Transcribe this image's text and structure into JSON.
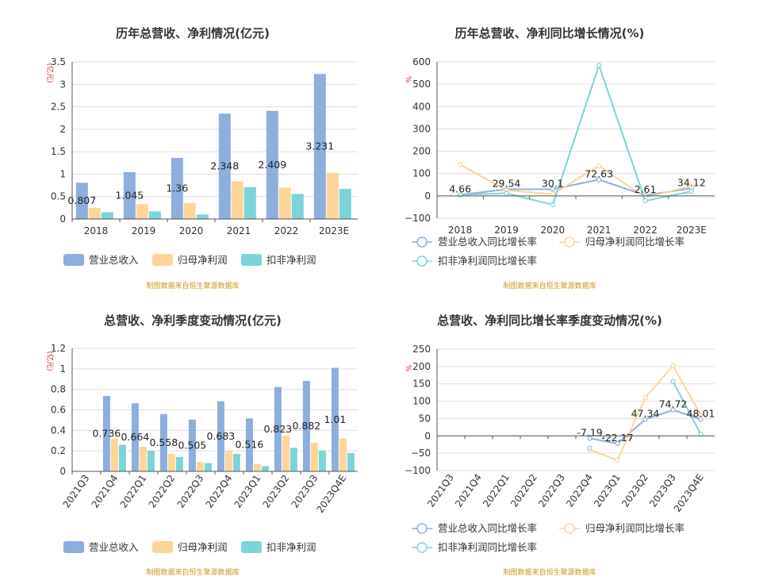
{
  "colors": {
    "revenue": "#8eaedc",
    "net_profit": "#fdd59a",
    "deducted_profit": "#7dd3d7",
    "grid": "#dddddd",
    "axis": "#555555",
    "unit_label": "#d62728",
    "source": "#c8961e"
  },
  "source_note": "制图数据来自恒生聚源数据库",
  "chart_data": [
    {
      "type": "bar",
      "title": "历年总营收、净利情况(亿元)",
      "ylabel": "(亿元)",
      "ylim": [
        0,
        3.5
      ],
      "yticks": [
        0,
        0.5,
        1,
        1.5,
        2,
        2.5,
        3,
        3.5
      ],
      "ytick_labels": [
        "0",
        "0.5",
        "1",
        "1.5",
        "2",
        "2.5",
        "3",
        "3.5"
      ],
      "categories": [
        "2018",
        "2019",
        "2020",
        "2021",
        "2022",
        "2023E"
      ],
      "series": [
        {
          "name": "营业总收入",
          "values": [
            0.807,
            1.045,
            1.36,
            2.348,
            2.409,
            3.231
          ]
        },
        {
          "name": "归母净利润",
          "values": [
            0.25,
            0.33,
            0.36,
            0.84,
            0.7,
            1.03
          ]
        },
        {
          "name": "扣非净利润",
          "values": [
            0.15,
            0.17,
            0.1,
            0.71,
            0.56,
            0.67
          ]
        }
      ],
      "data_labels": [
        "0.807",
        "1.045",
        "1.36",
        "2.348",
        "2.409",
        "3.231"
      ],
      "legend": "bottom",
      "grid": true
    },
    {
      "type": "line",
      "title": "历年总营收、净利同比增长情况(%)",
      "ylabel": "%",
      "ylim": [
        -100,
        600
      ],
      "yticks": [
        -100,
        0,
        100,
        200,
        300,
        400,
        500,
        600
      ],
      "ytick_labels": [
        "−100",
        "0",
        "100",
        "200",
        "300",
        "400",
        "500",
        "600"
      ],
      "categories": [
        "2018",
        "2019",
        "2020",
        "2021",
        "2022",
        "2023E"
      ],
      "series": [
        {
          "name": "营业总收入同比增长率",
          "values": [
            4.66,
            29.54,
            30.1,
            72.63,
            2.61,
            34.12
          ]
        },
        {
          "name": "归母净利润同比增长率",
          "values": [
            140,
            25,
            8,
            135,
            -8,
            45
          ]
        },
        {
          "name": "扣非净利润同比增长率",
          "values": [
            5,
            12,
            -40,
            585,
            -22,
            20
          ]
        }
      ],
      "data_labels": [
        "4.66",
        "29.54",
        "30.1",
        "72.63",
        "2.61",
        "34.12"
      ],
      "legend": "bottom",
      "grid": true
    },
    {
      "type": "bar",
      "title": "总营收、净利季度变动情况(亿元)",
      "ylabel": "(亿元)",
      "ylim": [
        0,
        1.2
      ],
      "yticks": [
        0,
        0.2,
        0.4,
        0.6,
        0.8,
        1,
        1.2
      ],
      "ytick_labels": [
        "0",
        "0.2",
        "0.4",
        "0.6",
        "0.8",
        "1",
        "1.2"
      ],
      "categories": [
        "2021Q3",
        "2021Q4",
        "2022Q1",
        "2022Q2",
        "2022Q3",
        "2022Q4",
        "2023Q1",
        "2023Q2",
        "2023Q3",
        "2023Q4E"
      ],
      "series": [
        {
          "name": "营业总收入",
          "values": [
            null,
            0.736,
            0.664,
            0.558,
            0.505,
            0.683,
            0.516,
            0.823,
            0.882,
            1.01
          ]
        },
        {
          "name": "归母净利润",
          "values": [
            null,
            0.32,
            0.24,
            0.17,
            0.09,
            0.2,
            0.07,
            0.35,
            0.28,
            0.32
          ]
        },
        {
          "name": "扣非净利润",
          "values": [
            null,
            0.26,
            0.2,
            0.14,
            0.08,
            0.17,
            0.05,
            0.23,
            0.2,
            0.18
          ]
        }
      ],
      "data_labels": [
        "",
        "0.736",
        "0.664",
        "0.558",
        "0.505",
        "0.683",
        "0.516",
        "0.823",
        "0.882",
        "1.01"
      ],
      "legend": "bottom",
      "grid": true
    },
    {
      "type": "line",
      "title": "总营收、净利同比增长率季度变动情况(%)",
      "ylabel": "%",
      "ylim": [
        -100,
        250
      ],
      "yticks": [
        -100,
        -50,
        0,
        50,
        100,
        150,
        200,
        250
      ],
      "ytick_labels": [
        "−100",
        "−50",
        "0",
        "50",
        "100",
        "150",
        "200",
        "250"
      ],
      "categories": [
        "2021Q3",
        "2021Q4",
        "2022Q1",
        "2022Q2",
        "2022Q3",
        "2022Q4",
        "2023Q1",
        "2023Q2",
        "2023Q3",
        "2023Q4E"
      ],
      "series": [
        {
          "name": "营业总收入同比增长率",
          "values": [
            null,
            null,
            null,
            null,
            null,
            -7.19,
            -22.17,
            47.34,
            74.72,
            48.01
          ]
        },
        {
          "name": "归母净利润同比增长率",
          "values": [
            null,
            null,
            null,
            null,
            null,
            -40,
            -70,
            110,
            202,
            60
          ]
        },
        {
          "name": "扣非净利润同比增长率",
          "values": [
            null,
            null,
            null,
            null,
            null,
            -35,
            null,
            null,
            157,
            5
          ]
        }
      ],
      "data_labels": [
        "",
        "",
        "",
        "",
        "",
        "-7.19",
        "-22.17",
        "47.34",
        "74.72",
        "48.01"
      ],
      "legend": "bottom",
      "grid": true
    }
  ]
}
